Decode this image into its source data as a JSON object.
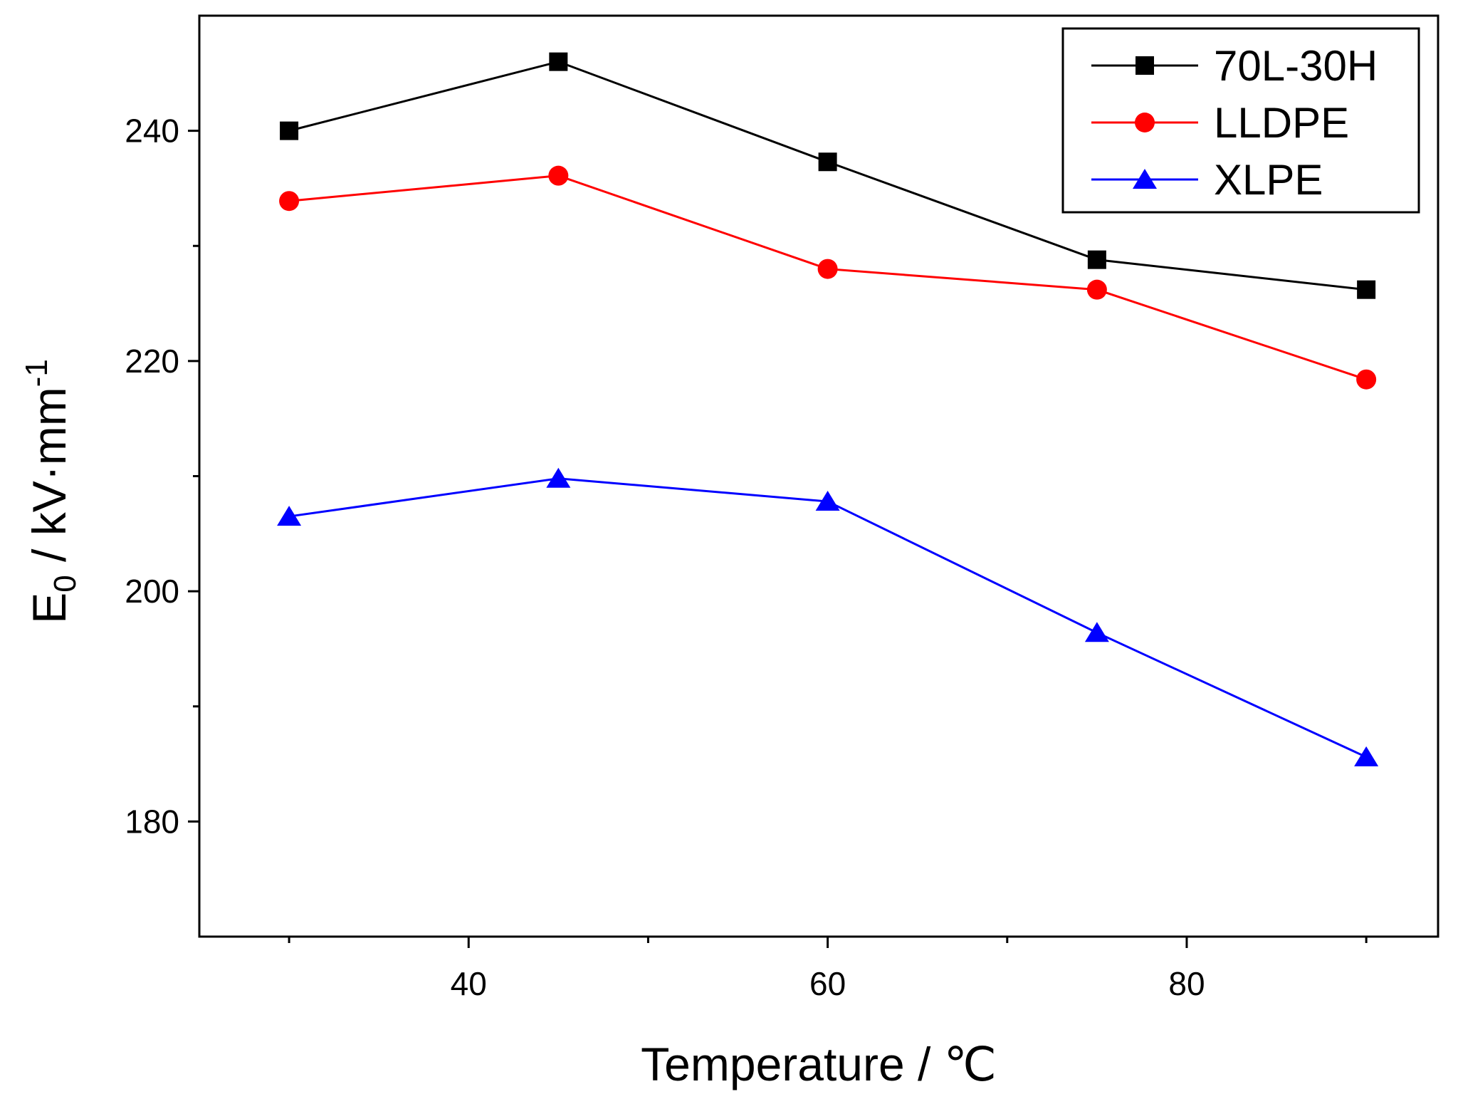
{
  "chart_data": {
    "type": "line",
    "title": "",
    "xlabel": "Temperature / ℃",
    "ylabel_main": "E",
    "ylabel_sub": "0",
    "ylabel_unit": " / kV·mm",
    "ylabel_sup": "-1",
    "xlim": [
      25,
      94
    ],
    "ylim": [
      170,
      250
    ],
    "x_major_ticks": [
      40,
      60,
      80
    ],
    "x_minor_ticks": [
      30,
      50,
      70,
      90
    ],
    "y_major_ticks": [
      180,
      200,
      220,
      240
    ],
    "y_minor_ticks": [
      190,
      210,
      230
    ],
    "legend_position": "top-right",
    "series": [
      {
        "name": "70L-30H",
        "color": "#000000",
        "marker": "square",
        "x": [
          30,
          45,
          60,
          75,
          90
        ],
        "values": [
          240.0,
          246.0,
          237.3,
          228.8,
          226.2
        ]
      },
      {
        "name": "LLDPE",
        "color": "#ff0000",
        "marker": "circle",
        "x": [
          30,
          45,
          60,
          75,
          90
        ],
        "values": [
          233.9,
          236.1,
          228.0,
          226.2,
          218.4
        ]
      },
      {
        "name": "XLPE",
        "color": "#0000ff",
        "marker": "triangle",
        "x": [
          30,
          45,
          60,
          75,
          90
        ],
        "values": [
          206.5,
          209.8,
          207.8,
          196.4,
          185.6
        ]
      }
    ]
  }
}
